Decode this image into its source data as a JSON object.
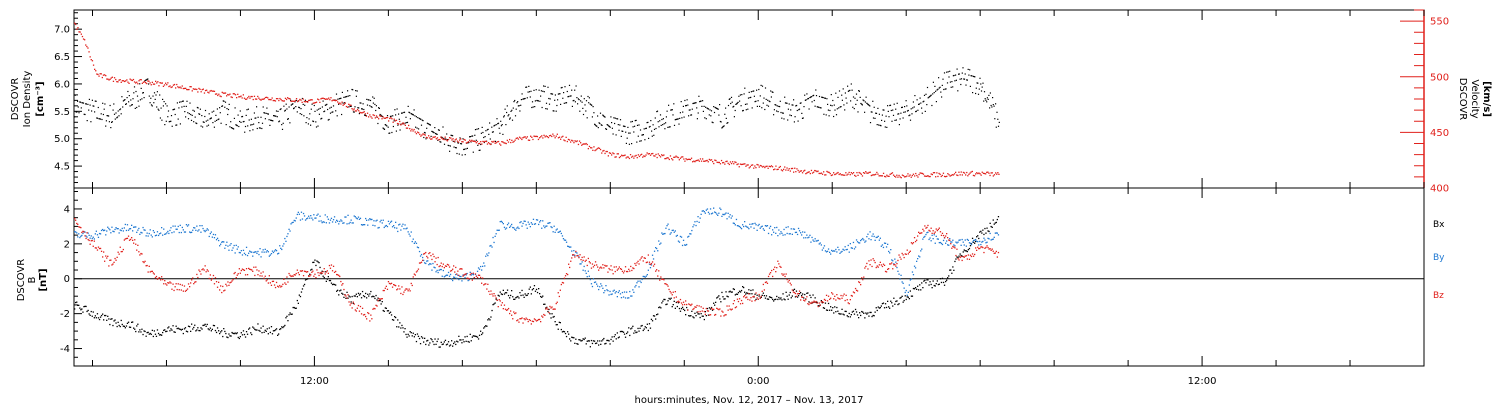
{
  "chart_data": [
    {
      "type": "scatter",
      "panel": "plasma",
      "xlabel": "hours:minutes, Nov. 12, 2017 – Nov. 13, 2017",
      "ylabel_left": [
        "DSCOVR",
        "Ion Density",
        "[cm⁻³]"
      ],
      "ylabel_right": [
        "DSCOVR",
        "Velocity",
        "[km/s]"
      ],
      "ylim_left": [
        4.1,
        7.35
      ],
      "ylim_right": [
        400,
        560
      ],
      "left_ticks": [
        "4.5",
        "5.0",
        "5.5",
        "6.0",
        "6.5",
        "7.0"
      ],
      "right_ticks": [
        "400",
        "450",
        "500",
        "550"
      ],
      "x_range_hours": [
        5.5,
        42.0
      ],
      "series": [
        {
          "axis": "left",
          "color": "#000000",
          "x_hours": [
            5.5,
            6,
            6.5,
            7,
            7.5,
            8,
            8.5,
            9,
            9.5,
            10,
            10.5,
            11,
            11.5,
            12,
            12.5,
            13,
            13.5,
            14,
            14.5,
            15,
            15.5,
            16,
            16.5,
            17,
            17.5,
            18,
            18.5,
            19,
            19.5,
            20,
            20.5,
            21,
            21.5,
            22,
            22.5,
            23,
            23.5,
            24,
            24.5,
            25,
            25.5,
            26,
            26.5,
            27,
            27.5,
            28,
            28.5,
            29,
            29.5,
            30,
            30.5
          ],
          "values": [
            5.6,
            5.5,
            5.4,
            5.7,
            5.9,
            5.4,
            5.5,
            5.3,
            5.5,
            5.3,
            5.4,
            5.3,
            5.6,
            5.4,
            5.6,
            5.7,
            5.6,
            5.3,
            5.4,
            5.2,
            5.0,
            4.9,
            5.0,
            5.2,
            5.7,
            5.8,
            5.7,
            5.8,
            5.5,
            5.2,
            5.1,
            5.2,
            5.4,
            5.5,
            5.6,
            5.4,
            5.7,
            5.8,
            5.6,
            5.5,
            5.7,
            5.6,
            5.8,
            5.5,
            5.4,
            5.5,
            5.7,
            6.0,
            6.1,
            6.0,
            5.3
          ]
        },
        {
          "axis": "right",
          "color": "#e0201b",
          "x_hours": [
            5.5,
            5.8,
            6.1,
            6.5,
            7,
            7.5,
            8,
            8.5,
            9,
            9.5,
            10,
            10.5,
            11,
            11.5,
            12,
            12.5,
            13,
            13.5,
            14,
            14.5,
            15,
            15.5,
            16,
            16.5,
            17,
            17.5,
            18,
            18.5,
            19,
            19.5,
            20,
            20.5,
            21,
            21.5,
            22,
            22.5,
            23,
            23.5,
            24,
            24.5,
            25,
            25.5,
            26,
            26.5,
            27,
            27.5,
            28,
            28.5,
            29,
            29.5,
            30,
            30.5
          ],
          "values": [
            548,
            530,
            502,
            498,
            496,
            495,
            493,
            490,
            487,
            484,
            482,
            481,
            480,
            479,
            478,
            480,
            472,
            465,
            462,
            455,
            446,
            444,
            442,
            441,
            440,
            444,
            445,
            447,
            442,
            436,
            430,
            428,
            430,
            428,
            426,
            425,
            423,
            421,
            419,
            418,
            416,
            414,
            413,
            412,
            413,
            412,
            411,
            412,
            412,
            413,
            413,
            412
          ]
        }
      ]
    },
    {
      "type": "scatter",
      "panel": "magnetic_field",
      "ylabel": [
        "DSCOVR",
        "B",
        "[nT]"
      ],
      "ylim": [
        -5.0,
        5.2
      ],
      "y_ticks": [
        "-4",
        "-2",
        "0",
        "2",
        "4"
      ],
      "x_ticks": [
        "12:00",
        "0:00",
        "12:00"
      ],
      "x_range_hours": [
        5.5,
        42.0
      ],
      "series": [
        {
          "name": "Bx",
          "color": "#000000",
          "x_hours": [
            5.5,
            6,
            6.5,
            7,
            7.5,
            8,
            8.5,
            9,
            9.5,
            10,
            10.5,
            11,
            11.5,
            12,
            12.5,
            13,
            13.5,
            14,
            14.5,
            15,
            15.5,
            16,
            16.5,
            17,
            17.5,
            18,
            18.5,
            19,
            19.5,
            20,
            20.5,
            21,
            21.5,
            22,
            22.5,
            23,
            23.5,
            24,
            24.5,
            25,
            25.5,
            26,
            26.5,
            27,
            27.5,
            28,
            28.5,
            29,
            29.5,
            30,
            30.5
          ],
          "values": [
            -1.5,
            -2.0,
            -2.5,
            -2.6,
            -3.2,
            -2.9,
            -2.9,
            -2.7,
            -3.1,
            -3.2,
            -2.8,
            -3.1,
            -1.5,
            1.0,
            -0.5,
            -1.2,
            -0.8,
            -2.0,
            -3.2,
            -3.6,
            -3.7,
            -3.5,
            -3.2,
            -0.8,
            -1.0,
            -0.5,
            -2.5,
            -3.5,
            -3.7,
            -3.5,
            -3.0,
            -2.8,
            -1.2,
            -1.8,
            -2.2,
            -1.0,
            -0.6,
            -1.0,
            -1.2,
            -0.8,
            -1.2,
            -1.8,
            -2.0,
            -2.0,
            -1.5,
            -1.0,
            -0.3,
            -0.2,
            1.5,
            2.6,
            3.4
          ]
        },
        {
          "name": "By",
          "color": "#1f78d1",
          "x_hours": [
            5.5,
            6,
            6.5,
            7,
            7.5,
            8,
            8.5,
            9,
            9.5,
            10,
            10.5,
            11,
            11.5,
            12,
            12.5,
            13,
            13.5,
            14,
            14.5,
            15,
            15.5,
            16,
            16.5,
            17,
            17.5,
            18,
            18.5,
            19,
            19.5,
            20,
            20.5,
            21,
            21.5,
            22,
            22.5,
            23,
            23.5,
            24,
            24.5,
            25,
            25.5,
            26,
            26.5,
            27,
            27.5,
            28,
            28.5,
            29,
            29.5,
            30,
            30.5
          ],
          "values": [
            2.5,
            2.5,
            2.8,
            2.9,
            2.6,
            2.8,
            2.9,
            2.8,
            2.0,
            1.6,
            1.5,
            1.5,
            3.6,
            3.5,
            3.4,
            3.4,
            3.2,
            3.1,
            2.8,
            1.0,
            0.2,
            0.0,
            0.5,
            3.1,
            3.0,
            3.2,
            2.9,
            1.5,
            -0.2,
            -0.8,
            -1.0,
            0.5,
            3.0,
            2.0,
            3.9,
            3.8,
            3.1,
            2.9,
            2.7,
            2.8,
            2.2,
            1.5,
            1.8,
            2.5,
            1.8,
            -0.8,
            2.5,
            2.1,
            2.0,
            2.2,
            2.6
          ]
        },
        {
          "name": "Bz",
          "color": "#e0201b",
          "x_hours": [
            5.5,
            6,
            6.5,
            7,
            7.5,
            8,
            8.5,
            9,
            9.5,
            10,
            10.5,
            11,
            11.5,
            12,
            12.5,
            13,
            13.5,
            14,
            14.5,
            15,
            15.5,
            16,
            16.5,
            17,
            17.5,
            18,
            18.5,
            19,
            19.5,
            20,
            20.5,
            21,
            21.5,
            22,
            22.5,
            23,
            23.5,
            24,
            24.5,
            25,
            25.5,
            26,
            26.5,
            27,
            27.5,
            28,
            28.5,
            29,
            29.5,
            30,
            30.5
          ],
          "values": [
            3.4,
            2.0,
            0.8,
            2.5,
            0.5,
            -0.4,
            -0.6,
            0.6,
            -0.6,
            0.5,
            0.4,
            -0.5,
            0.5,
            0.3,
            0.6,
            -1.5,
            -2.2,
            -0.3,
            -0.8,
            1.5,
            0.7,
            0.3,
            0.0,
            -1.5,
            -2.3,
            -2.4,
            -1.5,
            1.5,
            0.8,
            0.5,
            0.6,
            1.2,
            -0.5,
            -1.5,
            -1.8,
            -2.0,
            -1.2,
            -1.0,
            0.8,
            -0.8,
            -1.5,
            -1.0,
            -1.2,
            1.0,
            0.6,
            1.5,
            3.0,
            2.6,
            1.0,
            1.8,
            1.4
          ]
        }
      ],
      "legend": [
        "Bx",
        "By",
        "Bz"
      ],
      "legend_colors": [
        "#000000",
        "#1f78d1",
        "#e0201b"
      ]
    }
  ]
}
